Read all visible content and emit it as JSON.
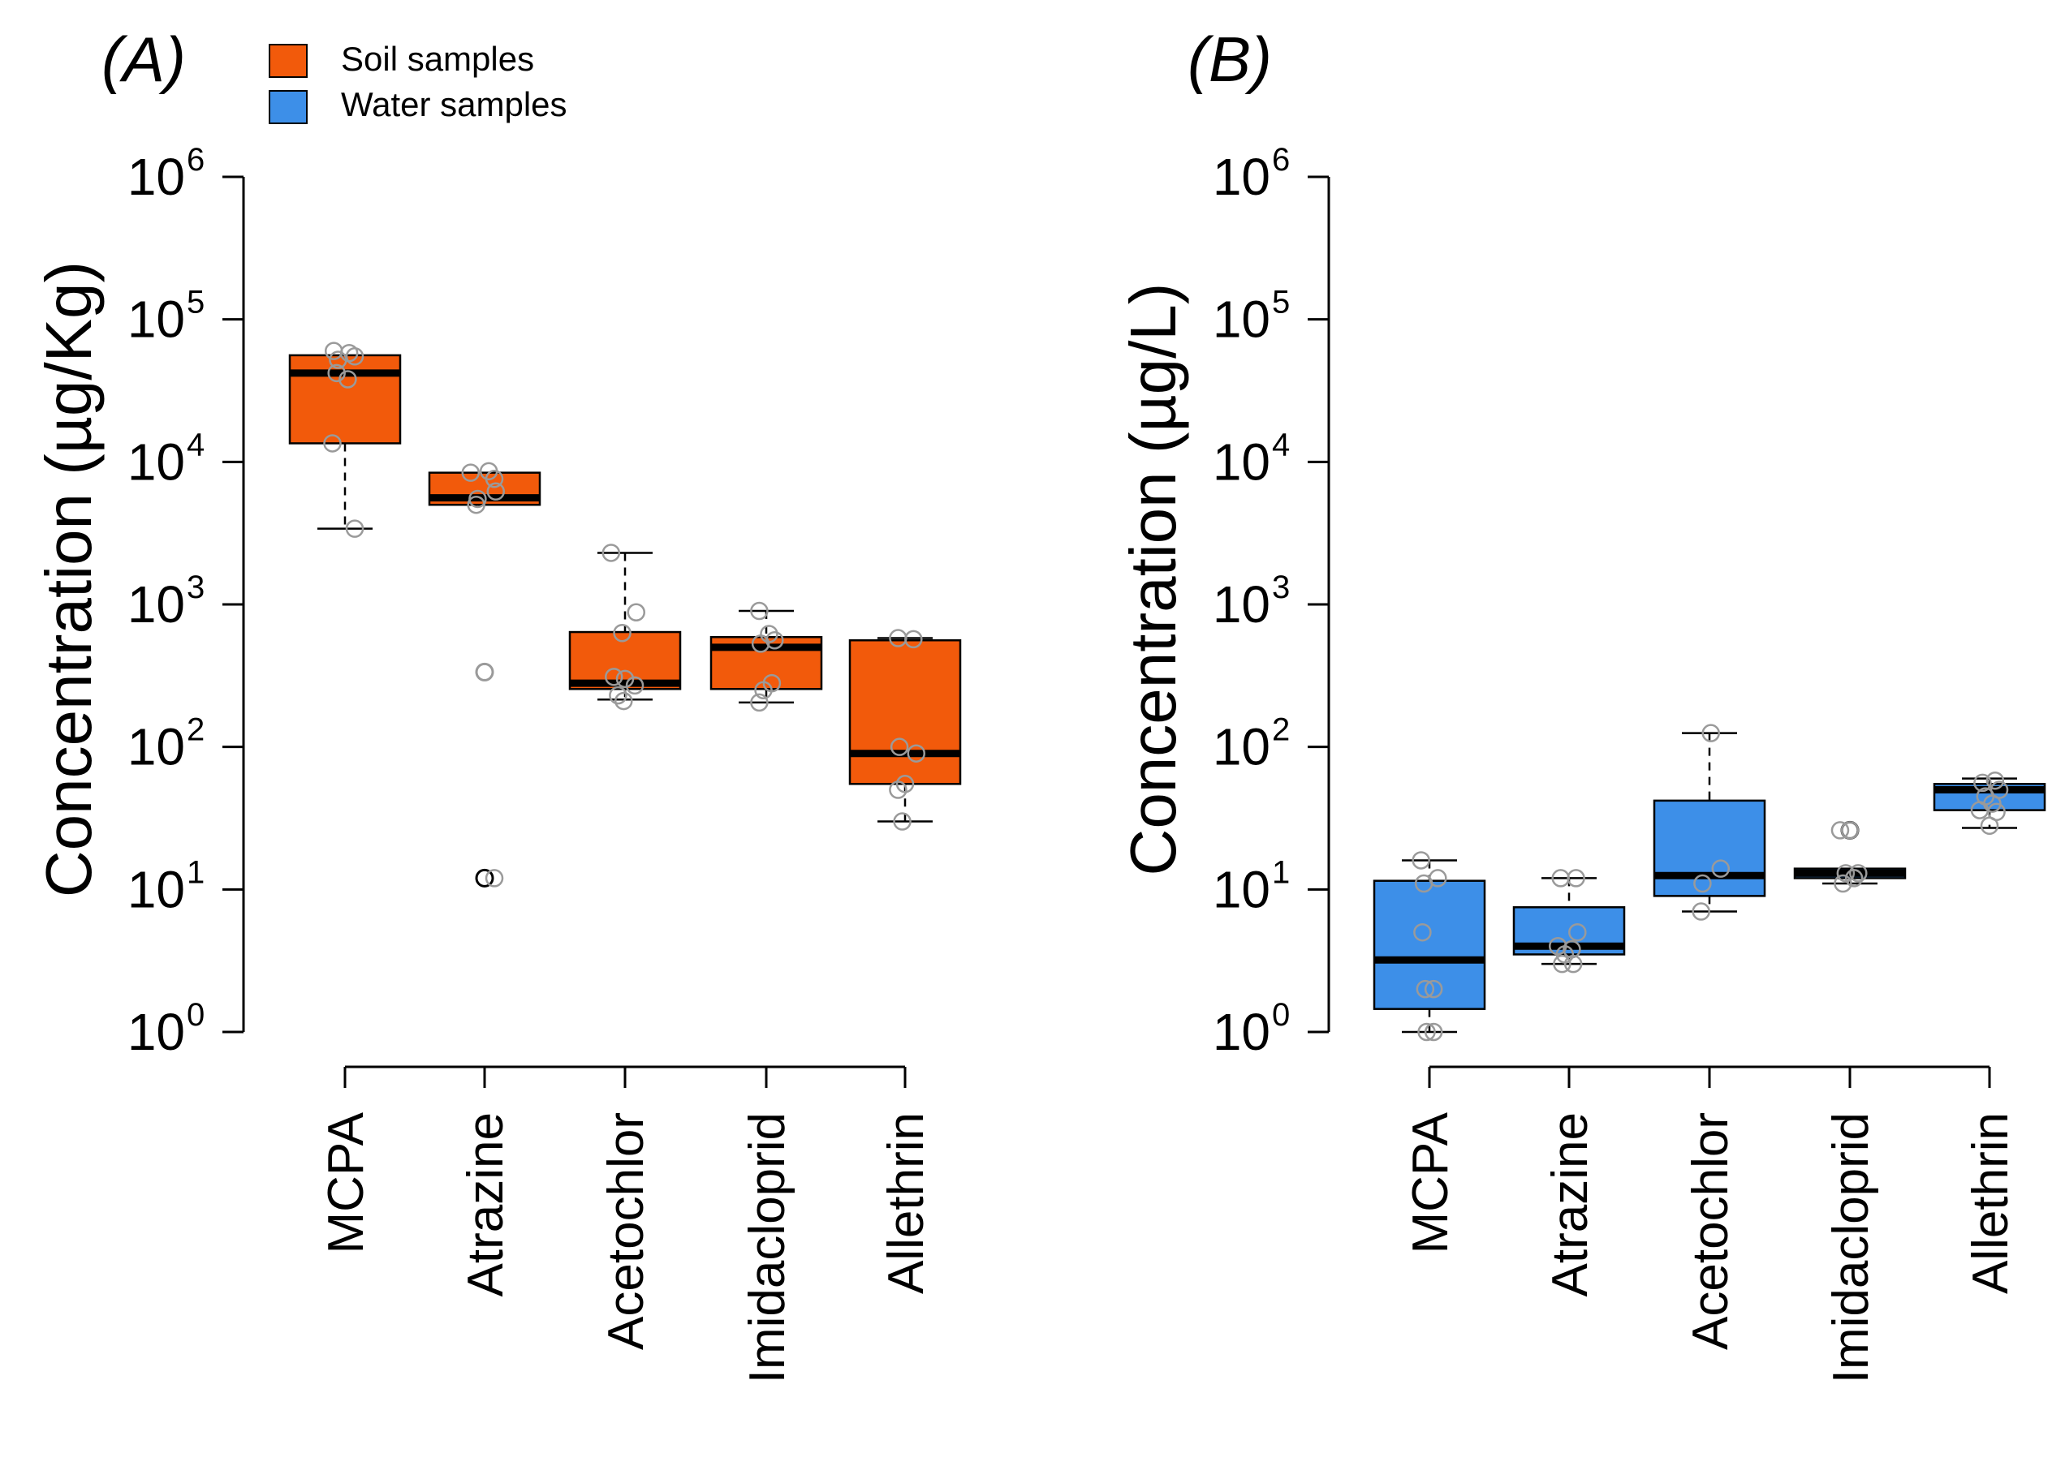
{
  "chart_data": [
    {
      "type": "box",
      "panel_label": "(A)",
      "ylabel": "Concentration (µg/Kg)",
      "yscale": "log10",
      "ylim": [
        1,
        1000000
      ],
      "yticks": [
        {
          "base": "10",
          "exp": "0"
        },
        {
          "base": "10",
          "exp": "1"
        },
        {
          "base": "10",
          "exp": "2"
        },
        {
          "base": "10",
          "exp": "3"
        },
        {
          "base": "10",
          "exp": "4"
        },
        {
          "base": "10",
          "exp": "5"
        },
        {
          "base": "10",
          "exp": "6"
        }
      ],
      "categories": [
        "MCPA",
        "Atrazine",
        "Acetochlor",
        "Imidacloprid",
        "Allethrin"
      ],
      "color": "#F25A0B",
      "series_name": "Soil samples",
      "boxes": [
        {
          "whisker_low": 3400,
          "q1": 13500,
          "median": 42000,
          "q3": 56000,
          "whisker_high": 56000
        },
        {
          "whisker_low": 5000,
          "q1": 5000,
          "median": 5600,
          "q3": 8400,
          "whisker_high": 8400
        },
        {
          "whisker_low": 215,
          "q1": 255,
          "median": 280,
          "q3": 640,
          "whisker_high": 2300
        },
        {
          "whisker_low": 205,
          "q1": 255,
          "median": 500,
          "q3": 590,
          "whisker_high": 900
        },
        {
          "whisker_low": 30,
          "q1": 55,
          "median": 90,
          "q3": 560,
          "whisker_high": 580
        }
      ],
      "outliers": [
        {
          "category": 1,
          "y": 12,
          "dark": true
        },
        {
          "category": 1,
          "y": 335,
          "dark": false
        }
      ],
      "points": [
        {
          "category": 0,
          "dx": -0.08,
          "y": 60000
        },
        {
          "category": 0,
          "dx": 0.03,
          "y": 58000
        },
        {
          "category": 0,
          "dx": -0.05,
          "y": 52000
        },
        {
          "category": 0,
          "dx": 0.07,
          "y": 55000
        },
        {
          "category": 0,
          "dx": -0.06,
          "y": 42000
        },
        {
          "category": 0,
          "dx": 0.02,
          "y": 38000
        },
        {
          "category": 0,
          "dx": -0.09,
          "y": 13500
        },
        {
          "category": 0,
          "dx": 0.07,
          "y": 3400
        },
        {
          "category": 1,
          "dx": -0.1,
          "y": 8400
        },
        {
          "category": 1,
          "dx": 0.03,
          "y": 8600
        },
        {
          "category": 1,
          "dx": 0.07,
          "y": 7600
        },
        {
          "category": 1,
          "dx": -0.05,
          "y": 5500
        },
        {
          "category": 1,
          "dx": 0.08,
          "y": 6200
        },
        {
          "category": 1,
          "dx": -0.06,
          "y": 5000
        },
        {
          "category": 1,
          "dx": 0.0,
          "y": 335
        },
        {
          "category": 1,
          "dx": 0.07,
          "y": 12
        },
        {
          "category": 2,
          "dx": -0.1,
          "y": 2300
        },
        {
          "category": 2,
          "dx": 0.08,
          "y": 880
        },
        {
          "category": 2,
          "dx": -0.02,
          "y": 630
        },
        {
          "category": 2,
          "dx": -0.08,
          "y": 310
        },
        {
          "category": 2,
          "dx": 0.0,
          "y": 300
        },
        {
          "category": 2,
          "dx": 0.07,
          "y": 270
        },
        {
          "category": 2,
          "dx": -0.05,
          "y": 230
        },
        {
          "category": 2,
          "dx": -0.01,
          "y": 210
        },
        {
          "category": 3,
          "dx": -0.05,
          "y": 900
        },
        {
          "category": 3,
          "dx": 0.02,
          "y": 620
        },
        {
          "category": 3,
          "dx": 0.06,
          "y": 560
        },
        {
          "category": 3,
          "dx": -0.04,
          "y": 530
        },
        {
          "category": 3,
          "dx": 0.04,
          "y": 280
        },
        {
          "category": 3,
          "dx": -0.02,
          "y": 250
        },
        {
          "category": 3,
          "dx": -0.05,
          "y": 205
        },
        {
          "category": 4,
          "dx": -0.05,
          "y": 580
        },
        {
          "category": 4,
          "dx": 0.06,
          "y": 570
        },
        {
          "category": 4,
          "dx": -0.04,
          "y": 100
        },
        {
          "category": 4,
          "dx": 0.08,
          "y": 90
        },
        {
          "category": 4,
          "dx": 0.0,
          "y": 55
        },
        {
          "category": 4,
          "dx": -0.05,
          "y": 50
        },
        {
          "category": 4,
          "dx": -0.02,
          "y": 30
        }
      ]
    },
    {
      "type": "box",
      "panel_label": "(B)",
      "ylabel": "Concentration (µg/L)",
      "yscale": "log10",
      "ylim": [
        1,
        1000000
      ],
      "yticks": [
        {
          "base": "10",
          "exp": "0"
        },
        {
          "base": "10",
          "exp": "1"
        },
        {
          "base": "10",
          "exp": "2"
        },
        {
          "base": "10",
          "exp": "3"
        },
        {
          "base": "10",
          "exp": "4"
        },
        {
          "base": "10",
          "exp": "5"
        },
        {
          "base": "10",
          "exp": "6"
        }
      ],
      "categories": [
        "MCPA",
        "Atrazine",
        "Acetochlor",
        "Imidacloprid",
        "Allethrin"
      ],
      "color": "#3D8FE8",
      "series_name": "Water samples",
      "boxes": [
        {
          "whisker_low": 1,
          "q1": 1.45,
          "median": 3.2,
          "q3": 11.5,
          "whisker_high": 16
        },
        {
          "whisker_low": 3.0,
          "q1": 3.5,
          "median": 4.0,
          "q3": 7.5,
          "whisker_high": 12
        },
        {
          "whisker_low": 7,
          "q1": 9,
          "median": 12.5,
          "q3": 42,
          "whisker_high": 125
        },
        {
          "whisker_low": 11,
          "q1": 12,
          "median": 13,
          "q3": 14,
          "whisker_high": 14
        },
        {
          "whisker_low": 27,
          "q1": 36,
          "median": 50,
          "q3": 55,
          "whisker_high": 60
        }
      ],
      "outliers": [
        {
          "category": 3,
          "y": 26,
          "dark": true
        }
      ],
      "points": [
        {
          "category": 0,
          "dx": -0.06,
          "y": 16
        },
        {
          "category": 0,
          "dx": 0.06,
          "y": 12
        },
        {
          "category": 0,
          "dx": -0.04,
          "y": 11
        },
        {
          "category": 0,
          "dx": -0.05,
          "y": 5
        },
        {
          "category": 0,
          "dx": -0.03,
          "y": 2
        },
        {
          "category": 0,
          "dx": 0.03,
          "y": 2
        },
        {
          "category": 0,
          "dx": -0.02,
          "y": 1
        },
        {
          "category": 0,
          "dx": 0.03,
          "y": 1
        },
        {
          "category": 1,
          "dx": -0.06,
          "y": 12
        },
        {
          "category": 1,
          "dx": 0.05,
          "y": 12
        },
        {
          "category": 1,
          "dx": 0.06,
          "y": 5
        },
        {
          "category": 1,
          "dx": -0.08,
          "y": 4
        },
        {
          "category": 1,
          "dx": -0.03,
          "y": 3.5
        },
        {
          "category": 1,
          "dx": 0.02,
          "y": 3.8
        },
        {
          "category": 1,
          "dx": -0.05,
          "y": 3.0
        },
        {
          "category": 1,
          "dx": 0.03,
          "y": 3.0
        },
        {
          "category": 2,
          "dx": 0.01,
          "y": 125
        },
        {
          "category": 2,
          "dx": 0.08,
          "y": 14
        },
        {
          "category": 2,
          "dx": -0.05,
          "y": 11
        },
        {
          "category": 2,
          "dx": -0.06,
          "y": 7
        },
        {
          "category": 3,
          "dx": -0.07,
          "y": 26
        },
        {
          "category": 3,
          "dx": 0.0,
          "y": 26
        },
        {
          "category": 3,
          "dx": -0.03,
          "y": 13
        },
        {
          "category": 3,
          "dx": 0.06,
          "y": 13
        },
        {
          "category": 3,
          "dx": -0.05,
          "y": 11
        },
        {
          "category": 3,
          "dx": 0.03,
          "y": 12
        },
        {
          "category": 4,
          "dx": -0.05,
          "y": 56
        },
        {
          "category": 4,
          "dx": 0.04,
          "y": 58
        },
        {
          "category": 4,
          "dx": 0.07,
          "y": 50
        },
        {
          "category": 4,
          "dx": -0.03,
          "y": 45
        },
        {
          "category": 4,
          "dx": 0.02,
          "y": 40
        },
        {
          "category": 4,
          "dx": -0.07,
          "y": 36
        },
        {
          "category": 4,
          "dx": 0.05,
          "y": 35
        },
        {
          "category": 4,
          "dx": 0.0,
          "y": 28
        }
      ]
    }
  ],
  "legend": {
    "items": [
      {
        "label": "Soil samples",
        "color": "#F25A0B"
      },
      {
        "label": "Water samples",
        "color": "#3D8FE8"
      }
    ]
  }
}
